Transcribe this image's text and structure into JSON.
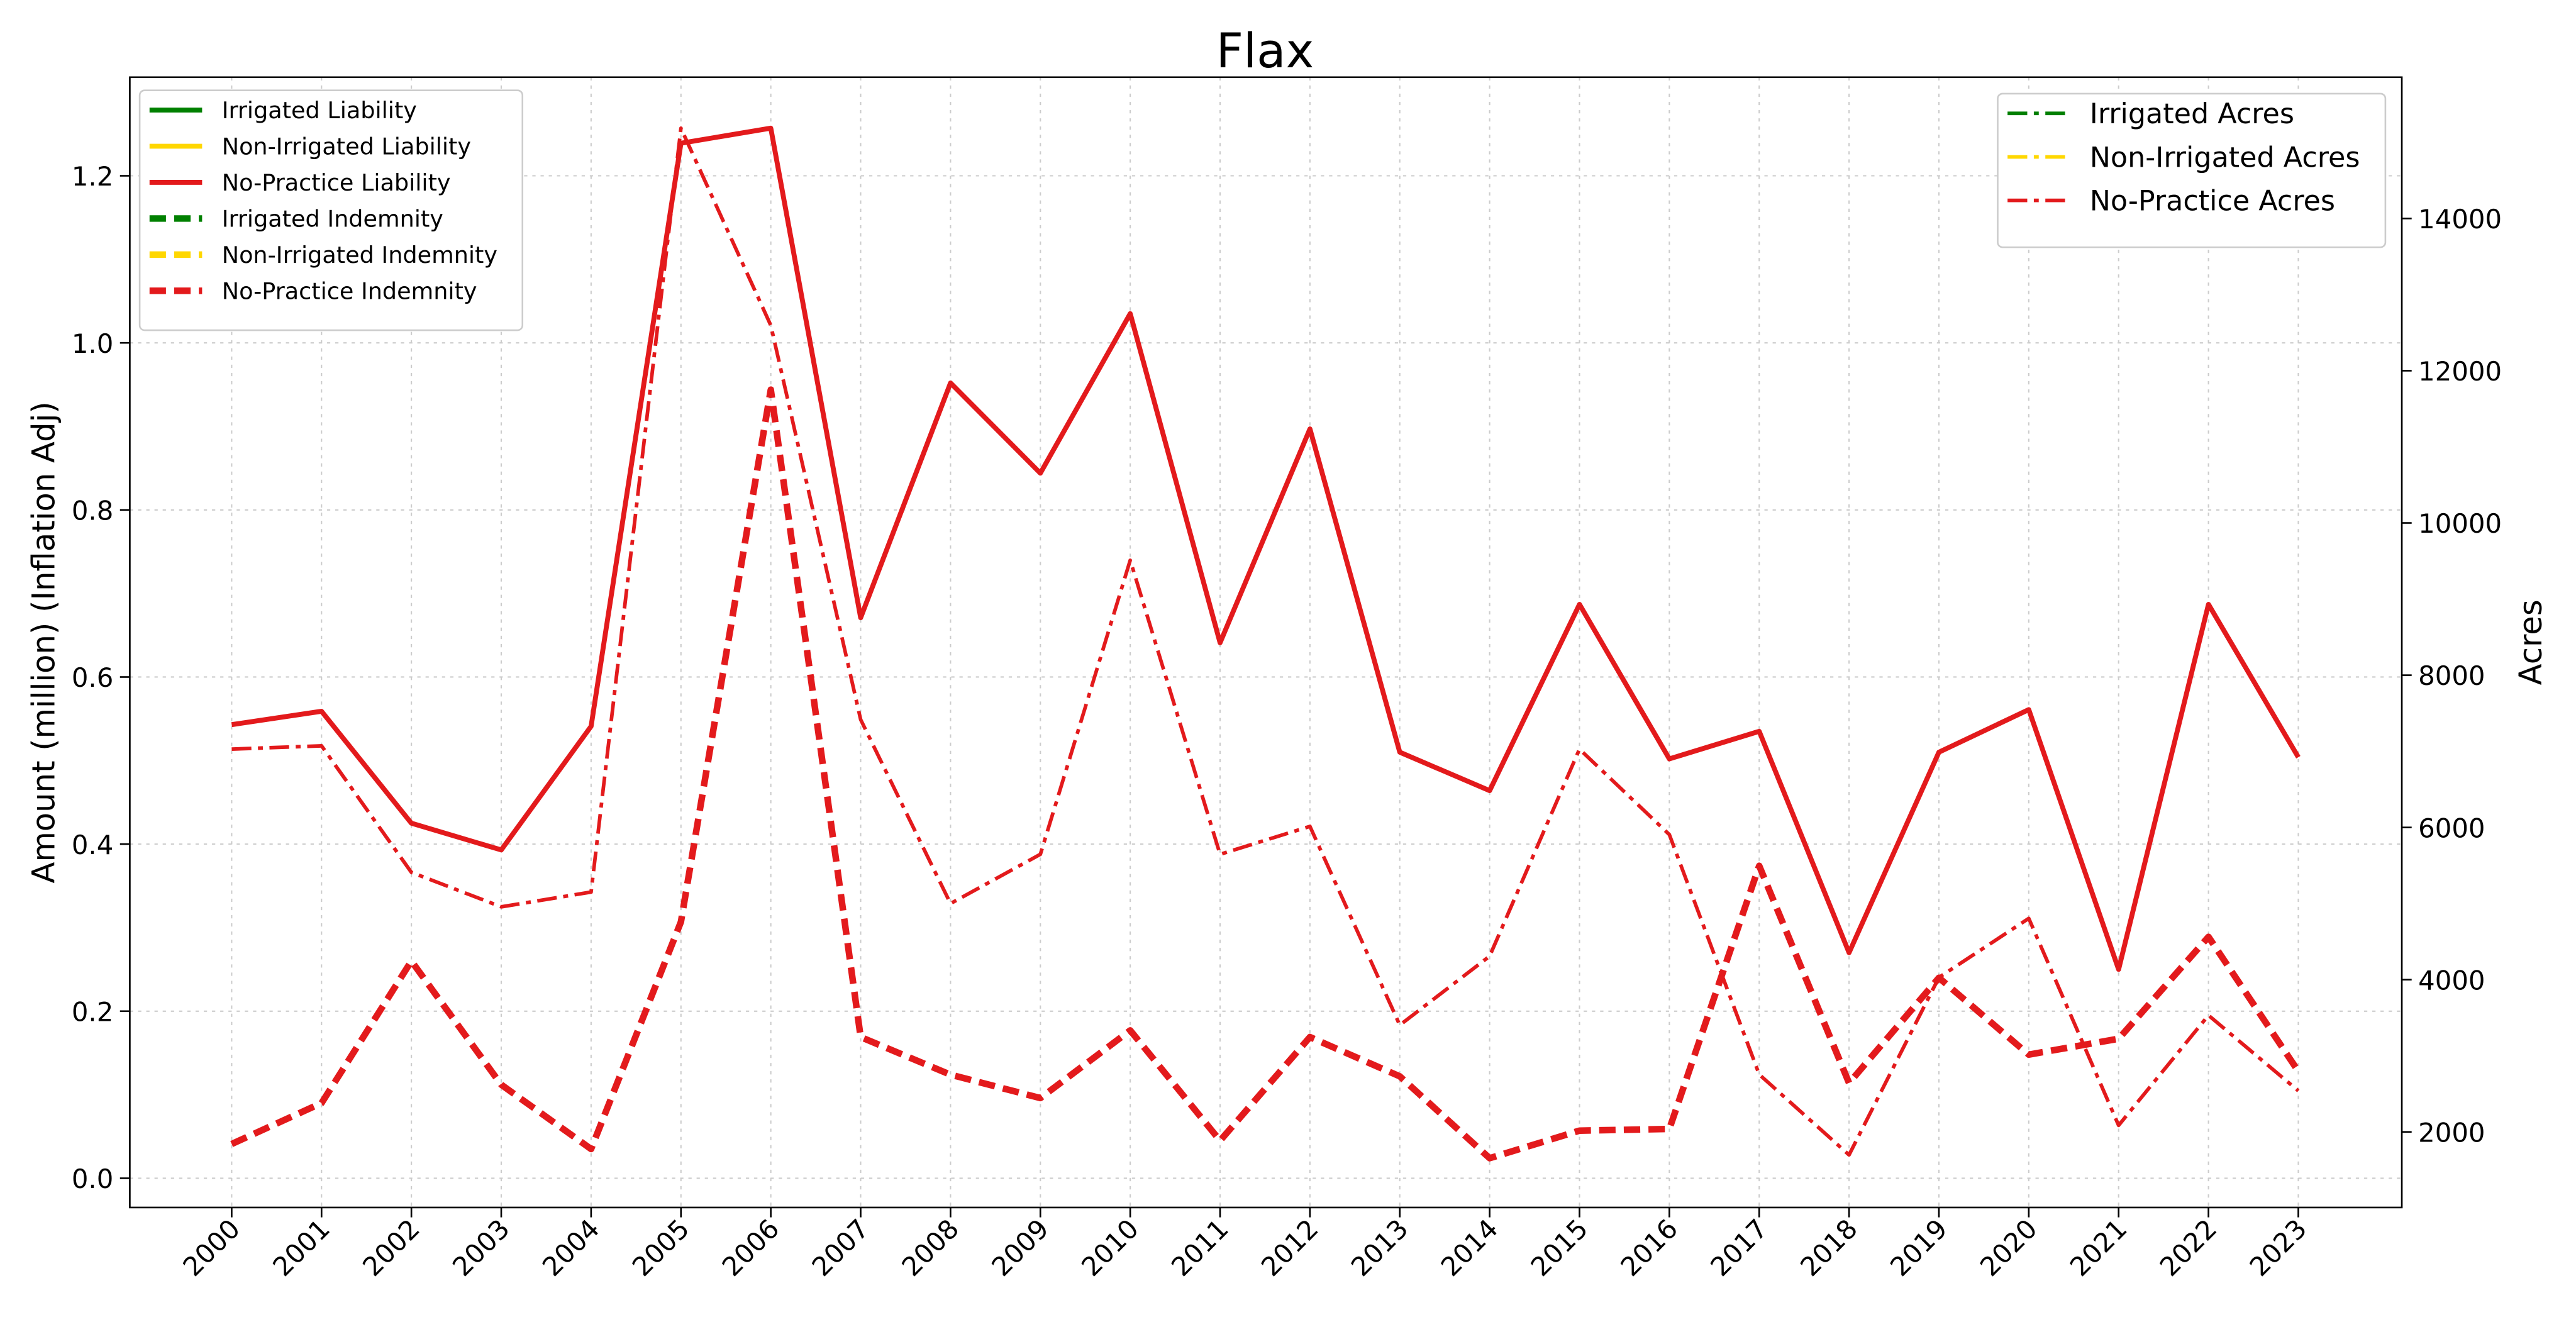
{
  "chart_data": {
    "type": "line",
    "title": "Flax",
    "y_label": "Amount (million) (Inflation Adj)",
    "y2_label": "Acres",
    "categories": [
      "2000",
      "2001",
      "2002",
      "2003",
      "2004",
      "2005",
      "2006",
      "2007",
      "2008",
      "2009",
      "2010",
      "2011",
      "2012",
      "2013",
      "2014",
      "2015",
      "2016",
      "2017",
      "2018",
      "2019",
      "2020",
      "2021",
      "2022",
      "2023"
    ],
    "ylim": [
      -0.035,
      1.318
    ],
    "yticks": [
      {
        "value": 0,
        "label": "0.0"
      },
      0.2,
      0.4,
      0.6,
      0.8,
      {
        "value": 1,
        "label": "1.0"
      },
      1.2
    ],
    "y2lim": [
      1007,
      15856
    ],
    "y2ticks": [
      2000,
      4000,
      6000,
      8000,
      10000,
      12000,
      14000
    ],
    "grid": true,
    "legend": "upper left",
    "legend2": "upper right",
    "series": [
      {
        "name": "Irrigated Liability",
        "color": "#008000",
        "linestyle": "solid",
        "values": [
          null,
          null,
          null,
          null,
          null,
          null,
          null,
          null,
          null,
          null,
          null,
          null,
          null,
          null,
          null,
          null,
          null,
          null,
          null,
          null,
          null,
          null,
          null,
          null
        ]
      },
      {
        "name": "Non-Irrigated Liability",
        "color": "#ffd700",
        "linestyle": "solid",
        "values": [
          null,
          null,
          null,
          null,
          null,
          null,
          null,
          null,
          null,
          null,
          null,
          null,
          null,
          null,
          null,
          null,
          null,
          null,
          null,
          null,
          null,
          null,
          null,
          null
        ]
      },
      {
        "name": "No-Practice Liability",
        "color": "#e31a1c",
        "linestyle": "solid",
        "values": [
          0.543,
          0.559,
          0.425,
          0.393,
          0.541,
          1.239,
          1.257,
          0.671,
          0.952,
          0.844,
          1.035,
          0.641,
          0.897,
          0.51,
          0.464,
          0.687,
          0.502,
          0.535,
          0.27,
          0.51,
          0.561,
          0.25,
          0.687,
          0.504
        ]
      },
      {
        "name": "Irrigated Indemnity",
        "color": "#008000",
        "linestyle": "dashed",
        "values": [
          null,
          null,
          null,
          null,
          null,
          null,
          null,
          null,
          null,
          null,
          null,
          null,
          null,
          null,
          null,
          null,
          null,
          null,
          null,
          null,
          null,
          null,
          null,
          null
        ]
      },
      {
        "name": "Non-Irrigated Indemnity",
        "color": "#ffd700",
        "linestyle": "dashed",
        "values": [
          null,
          null,
          null,
          null,
          null,
          null,
          null,
          null,
          null,
          null,
          null,
          null,
          null,
          null,
          null,
          null,
          null,
          null,
          null,
          null,
          null,
          null,
          null,
          null
        ]
      },
      {
        "name": "No-Practice Indemnity",
        "color": "#e31a1c",
        "linestyle": "dashed",
        "values": [
          0.041,
          0.09,
          0.26,
          0.112,
          0.035,
          0.307,
          0.944,
          0.169,
          0.124,
          0.096,
          0.177,
          0.045,
          0.169,
          0.122,
          0.024,
          0.057,
          0.059,
          0.374,
          0.114,
          0.24,
          0.148,
          0.167,
          0.289,
          0.128
        ]
      },
      {
        "name": "Irrigated Acres",
        "color": "#008000",
        "linestyle": "dashdot",
        "axis": "y2",
        "values": [
          null,
          null,
          null,
          null,
          null,
          null,
          null,
          null,
          null,
          null,
          null,
          null,
          null,
          null,
          null,
          null,
          null,
          null,
          null,
          null,
          null,
          null,
          null,
          null
        ]
      },
      {
        "name": "Non-Irrigated Acres",
        "color": "#ffd700",
        "linestyle": "dashdot",
        "axis": "y2",
        "values": [
          null,
          null,
          null,
          null,
          null,
          null,
          null,
          null,
          null,
          null,
          null,
          null,
          null,
          null,
          null,
          null,
          null,
          null,
          null,
          null,
          null,
          null,
          null,
          null
        ]
      },
      {
        "name": "No-Practice Acres",
        "color": "#e31a1c",
        "linestyle": "dashdot",
        "axis": "y2",
        "values": [
          7029,
          7072,
          5410,
          4957,
          5151,
          15186,
          12596,
          7417,
          5000,
          5647,
          9510,
          5647,
          6014,
          3403,
          4309,
          7029,
          5906,
          2755,
          1698,
          4029,
          4805,
          2086,
          3532,
          2540
        ]
      }
    ]
  }
}
